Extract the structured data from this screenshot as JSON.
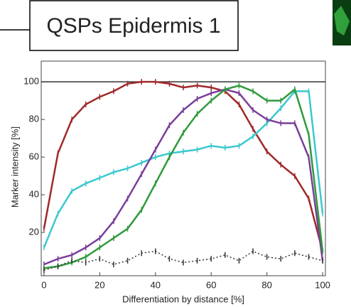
{
  "chart_data": {
    "type": "line",
    "title": "QSPs Epidermis 1",
    "x_label": "Differentiation by distance [%]",
    "y_label": "Marker intensity [%]",
    "x": [
      0,
      5,
      10,
      15,
      20,
      25,
      30,
      35,
      40,
      45,
      50,
      55,
      60,
      65,
      70,
      75,
      80,
      85,
      90,
      95,
      100
    ],
    "series": [
      {
        "color": "#a0282a",
        "values": [
          22,
          62,
          80,
          88,
          92,
          95,
          99,
          100,
          100,
          99,
          97,
          98,
          97,
          95,
          88,
          75,
          63,
          56,
          50,
          38,
          10
        ]
      },
      {
        "color": "#3ac8d0",
        "values": [
          12,
          30,
          42,
          46,
          49,
          52,
          54,
          57,
          60,
          62,
          63,
          64,
          66,
          65,
          66,
          71,
          78,
          86,
          95,
          95,
          30
        ]
      },
      {
        "color": "#7a3f9a",
        "values": [
          3,
          6,
          8,
          12,
          17,
          26,
          38,
          51,
          64,
          77,
          85,
          91,
          94,
          96,
          94,
          85,
          80,
          78,
          78,
          60,
          5
        ]
      },
      {
        "color": "#2f9a3a",
        "values": [
          1,
          2,
          4,
          7,
          12,
          17,
          22,
          32,
          46,
          60,
          73,
          83,
          90,
          96,
          98,
          95,
          90,
          90,
          96,
          72,
          10
        ]
      },
      {
        "color": "#333333",
        "line_style": "dotted",
        "values": [
          0,
          2,
          5,
          4,
          6,
          3,
          5,
          9,
          10,
          6,
          4,
          5,
          6,
          8,
          5,
          10,
          7,
          6,
          9,
          7,
          5
        ]
      }
    ],
    "hline": 100,
    "xlim": [
      -1,
      101
    ],
    "ylim": [
      -3,
      111
    ],
    "xticks": [
      0,
      20,
      40,
      60,
      80,
      100
    ],
    "yticks": [
      20,
      40,
      60,
      80,
      100
    ]
  }
}
